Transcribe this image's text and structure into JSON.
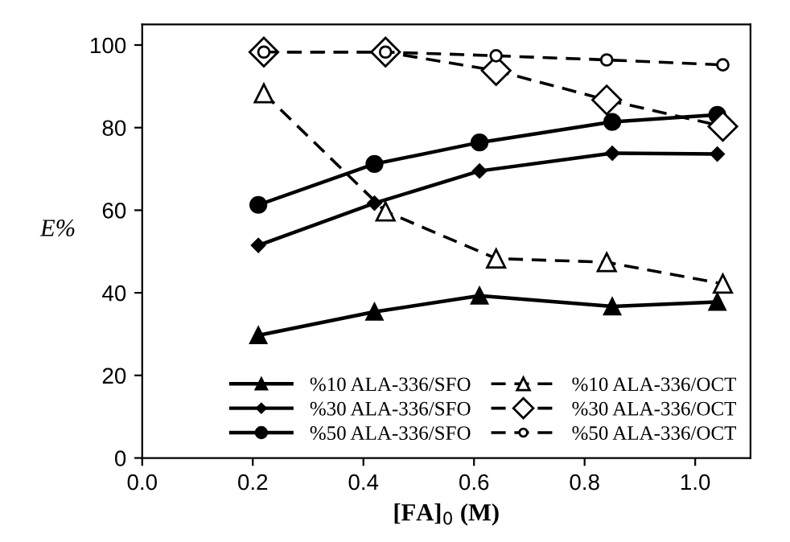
{
  "chart_data": {
    "type": "line",
    "xlabel": "[FA]$_{0}$ (M)",
    "ylabel": "E%",
    "xlim": [
      0,
      1.1
    ],
    "xticks": [
      {
        "value": 0,
        "label": "0.0"
      },
      0.2,
      0.4,
      0.6,
      0.8,
      {
        "value": 1,
        "label": "1.0"
      }
    ],
    "ylim": [
      0,
      105
    ],
    "yticks": [
      0,
      20,
      40,
      60,
      80,
      100
    ],
    "grid": false,
    "legend": "bottom right",
    "series": [
      {
        "name": "%10 ALA-336/SFO",
        "color": "#000000",
        "marker": "triangle",
        "line_style": "solid",
        "x": [
          0.21,
          0.42,
          0.61,
          0.85,
          1.04
        ],
        "values": [
          29.7,
          35.4,
          39.3,
          36.7,
          37.8
        ]
      },
      {
        "name": "%30 ALA-336/SFO",
        "color": "#000000",
        "marker": "diamond",
        "line_style": "solid",
        "x": [
          0.21,
          0.42,
          0.61,
          0.85,
          1.04
        ],
        "values": [
          51.5,
          61.7,
          69.5,
          73.8,
          73.6
        ]
      },
      {
        "name": "%50 ALA-336/SFO",
        "color": "#000000",
        "marker": "circle",
        "line_style": "solid",
        "x": [
          0.21,
          0.42,
          0.61,
          0.85,
          1.04
        ],
        "values": [
          61.3,
          71.2,
          76.4,
          81.4,
          83.1
        ]
      },
      {
        "name": "%10 ALA-336/OCT",
        "color": "#000000",
        "marker": "triangle",
        "line_style": "dashed",
        "x": [
          0.22,
          0.44,
          0.64,
          0.84,
          1.05
        ],
        "values": [
          88.3,
          59.7,
          48.3,
          47.4,
          42.2
        ]
      },
      {
        "name": "%30 ALA-336/OCT",
        "color": "#000000",
        "marker": "diamond",
        "line_style": "dashed",
        "x": [
          0.22,
          0.44,
          0.64,
          0.84,
          1.05
        ],
        "values": [
          98.3,
          98.3,
          93.8,
          86.7,
          80.3
        ]
      },
      {
        "name": "%50 ALA-336/OCT",
        "color": "#000000",
        "marker": "circle",
        "line_style": "dashed",
        "x": [
          0.22,
          0.44,
          0.64,
          0.84,
          1.05
        ],
        "values": [
          98.3,
          98.3,
          97.4,
          96.4,
          95.2
        ]
      }
    ]
  }
}
